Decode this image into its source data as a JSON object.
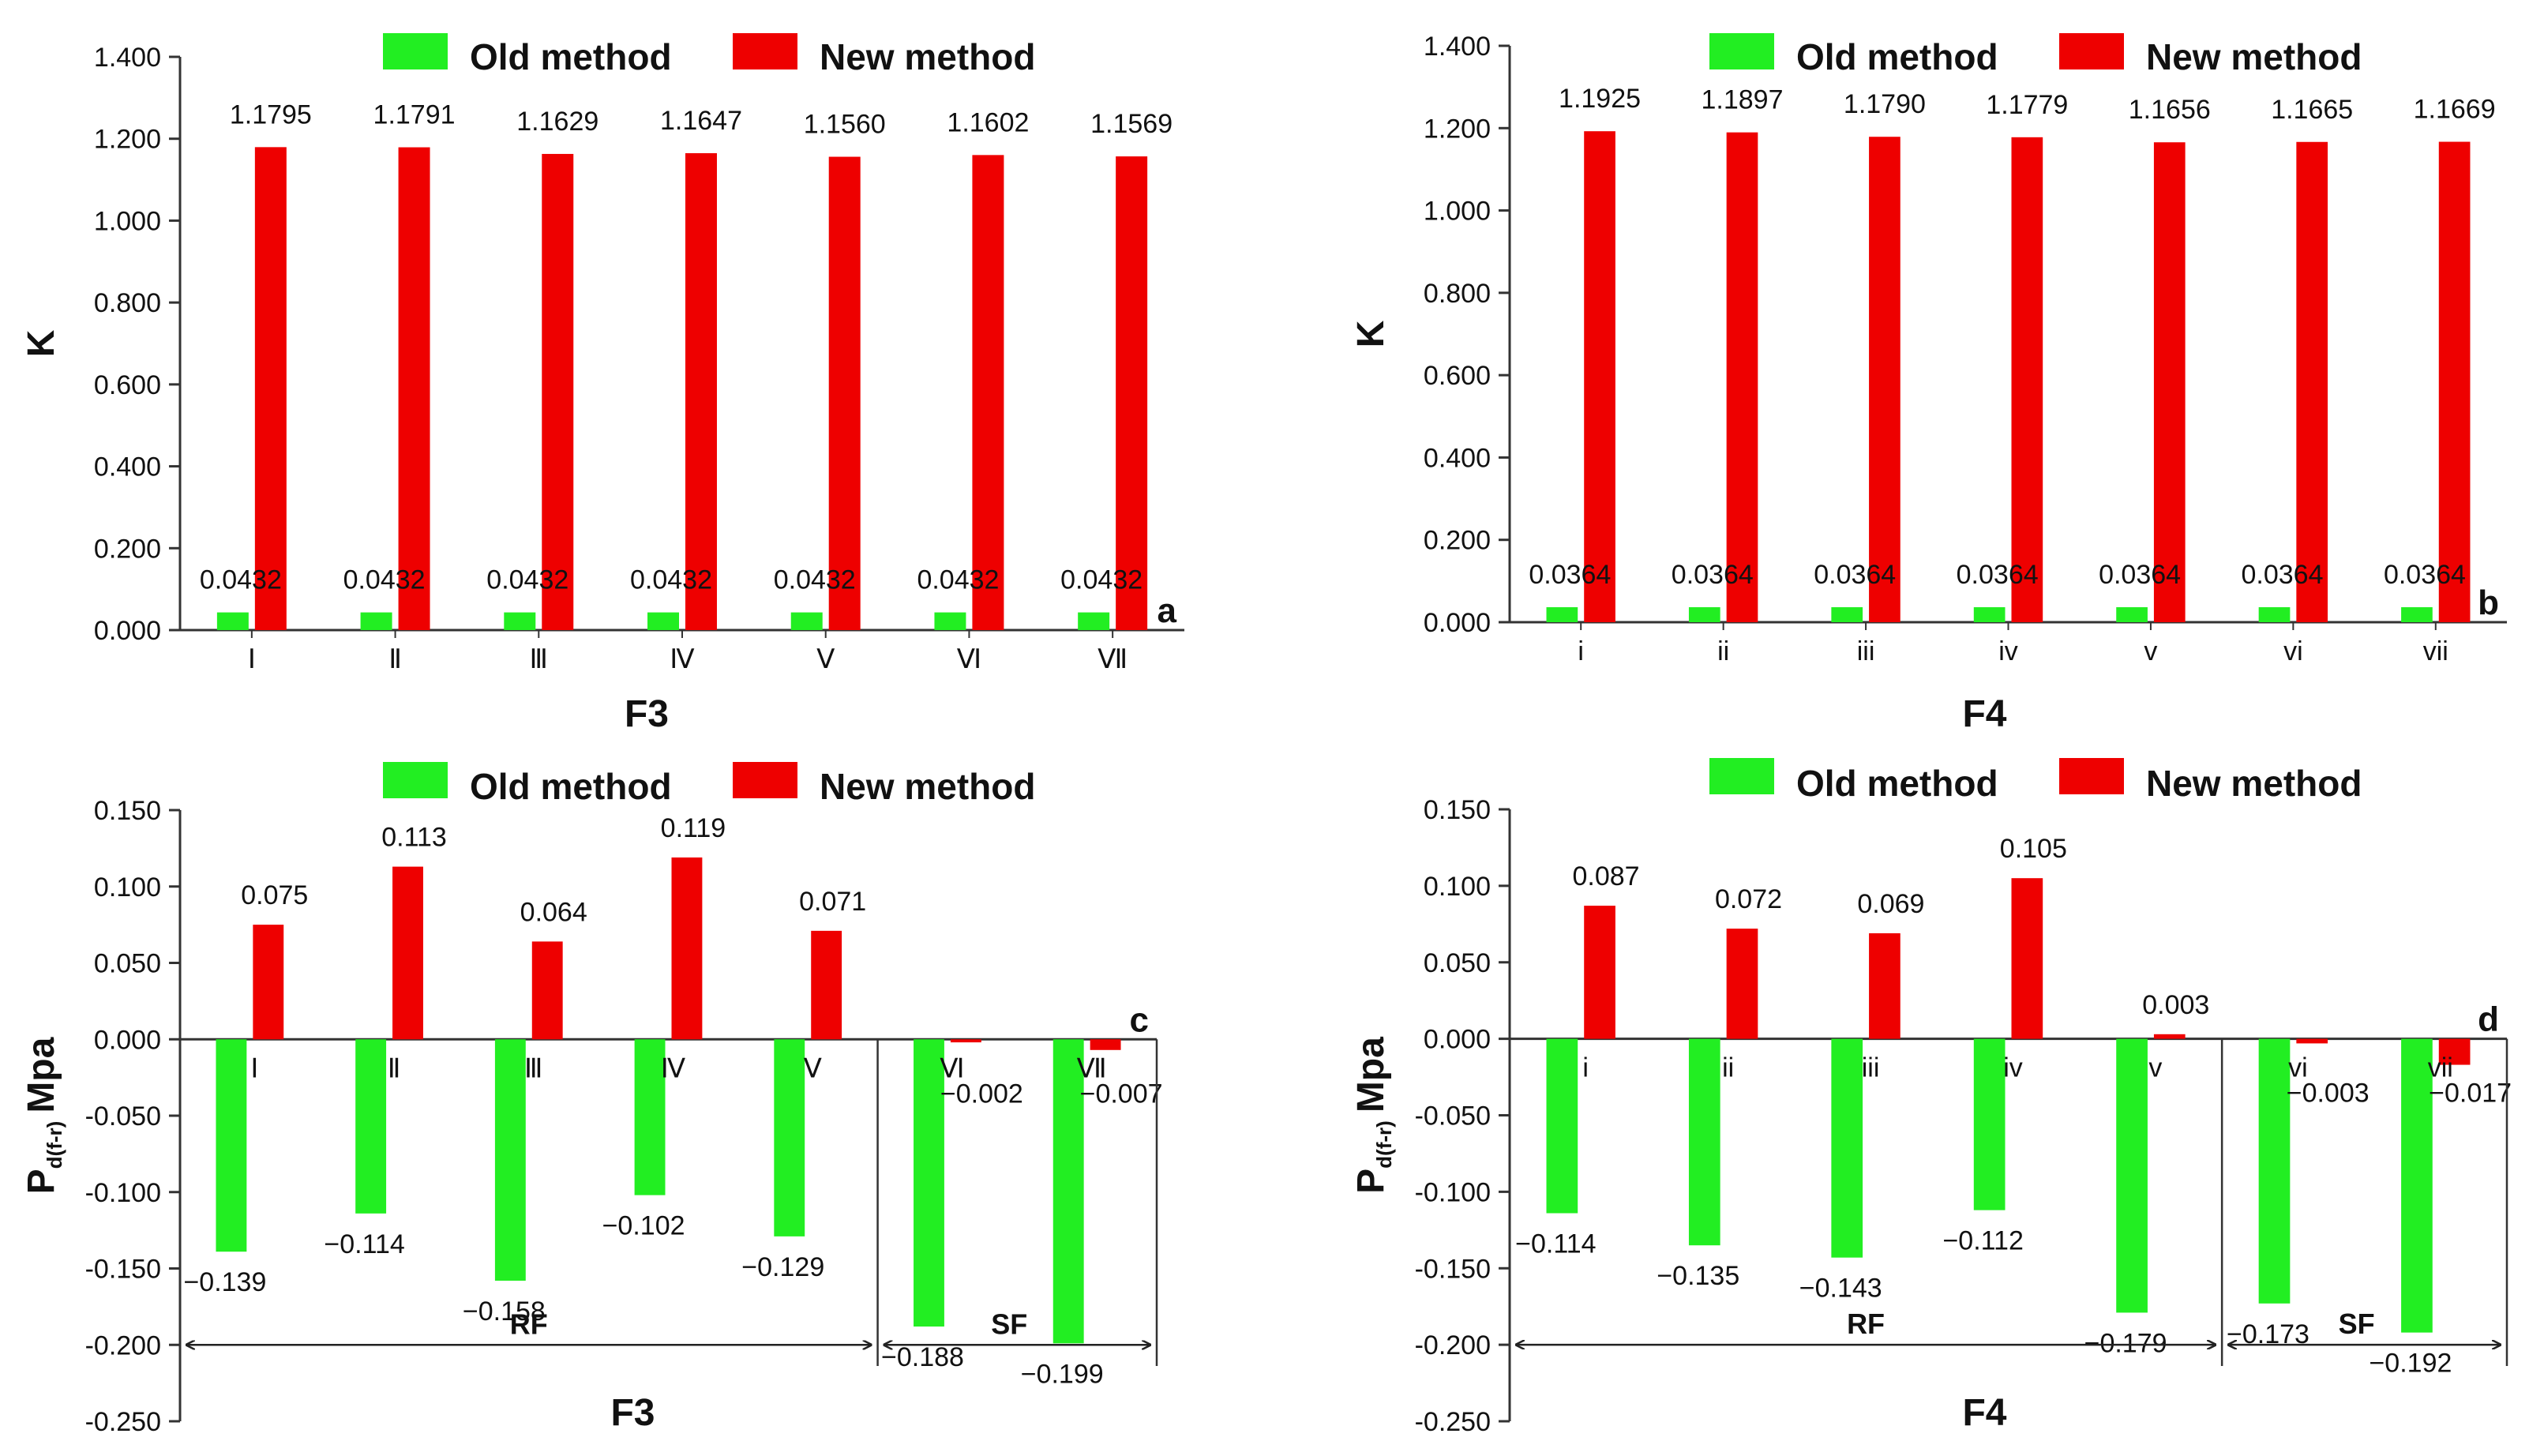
{
  "legend": {
    "old": "Old method",
    "new": "New method"
  },
  "colors": {
    "old": "#22ee22",
    "new": "#ee0000",
    "axis": "#333333"
  },
  "chart_data": [
    {
      "id": "a",
      "type": "bar",
      "panel_letter": "a",
      "xlabel": "F3",
      "ylabel": "K",
      "categories": [
        "Ⅰ",
        "Ⅱ",
        "Ⅲ",
        "Ⅳ",
        "Ⅴ",
        "Ⅵ",
        "Ⅶ"
      ],
      "ylim": [
        0,
        1.4
      ],
      "yticks": [
        "0.000",
        "0.200",
        "0.400",
        "0.600",
        "0.800",
        "1.000",
        "1.200",
        "1.400"
      ],
      "series": [
        {
          "name": "Old method",
          "values": [
            0.0432,
            0.0432,
            0.0432,
            0.0432,
            0.0432,
            0.0432,
            0.0432
          ],
          "labels": [
            "0.0432",
            "0.0432",
            "0.0432",
            "0.0432",
            "0.0432",
            "0.0432",
            "0.0432"
          ]
        },
        {
          "name": "New method",
          "values": [
            1.1795,
            1.1791,
            1.1629,
            1.1647,
            1.156,
            1.1602,
            1.1569
          ],
          "labels": [
            "1.1795",
            "1.1791",
            "1.1629",
            "1.1647",
            "1.1560",
            "1.1602",
            "1.1569"
          ]
        }
      ]
    },
    {
      "id": "b",
      "type": "bar",
      "panel_letter": "b",
      "xlabel": "F4",
      "ylabel": "K",
      "categories": [
        "i",
        "ii",
        "iii",
        "iv",
        "v",
        "vi",
        "vii"
      ],
      "ylim": [
        0,
        1.4
      ],
      "yticks": [
        "0.000",
        "0.200",
        "0.400",
        "0.600",
        "0.800",
        "1.000",
        "1.200",
        "1.400"
      ],
      "series": [
        {
          "name": "Old method",
          "values": [
            0.0364,
            0.0364,
            0.0364,
            0.0364,
            0.0364,
            0.0364,
            0.0364
          ],
          "labels": [
            "0.0364",
            "0.0364",
            "0.0364",
            "0.0364",
            "0.0364",
            "0.0364",
            "0.0364"
          ]
        },
        {
          "name": "New method",
          "values": [
            1.1925,
            1.1897,
            1.179,
            1.1779,
            1.1656,
            1.1665,
            1.1669
          ],
          "labels": [
            "1.1925",
            "1.1897",
            "1.1790",
            "1.1779",
            "1.1656",
            "1.1665",
            "1.1669"
          ]
        }
      ]
    },
    {
      "id": "c",
      "type": "bar",
      "panel_letter": "c",
      "xlabel": "F3",
      "ylabel": "P",
      "ylabel_sub": "d(f-r)",
      "ylabel_unit": "Mpa",
      "categories": [
        "Ⅰ",
        "Ⅱ",
        "Ⅲ",
        "Ⅳ",
        "Ⅴ",
        "Ⅵ",
        "Ⅶ"
      ],
      "ylim": [
        -0.25,
        0.15
      ],
      "yticks": [
        "-0.250",
        "-0.200",
        "-0.150",
        "-0.100",
        "-0.050",
        "0.000",
        "0.050",
        "0.100",
        "0.150"
      ],
      "groups": [
        {
          "label": "RF",
          "from": 0,
          "to": 4
        },
        {
          "label": "SF",
          "from": 5,
          "to": 6
        }
      ],
      "series": [
        {
          "name": "Old method",
          "values": [
            -0.139,
            -0.114,
            -0.158,
            -0.102,
            -0.129,
            -0.188,
            -0.199
          ],
          "labels": [
            "−0.139",
            "−0.114",
            "−0.158",
            "−0.102",
            "−0.129",
            "−0.188",
            "−0.199"
          ]
        },
        {
          "name": "New method",
          "values": [
            0.075,
            0.113,
            0.064,
            0.119,
            0.071,
            -0.002,
            -0.007
          ],
          "labels": [
            "0.075",
            "0.113",
            "0.064",
            "0.119",
            "0.071",
            "−0.002",
            "−0.007"
          ]
        }
      ]
    },
    {
      "id": "d",
      "type": "bar",
      "panel_letter": "d",
      "xlabel": "F4",
      "ylabel": "P",
      "ylabel_sub": "d(f-r)",
      "ylabel_unit": "Mpa",
      "categories": [
        "i",
        "ii",
        "iii",
        "iv",
        "v",
        "vi",
        "vii"
      ],
      "ylim": [
        -0.25,
        0.15
      ],
      "yticks": [
        "-0.250",
        "-0.200",
        "-0.150",
        "-0.100",
        "-0.050",
        "0.000",
        "0.050",
        "0.100",
        "0.150"
      ],
      "groups": [
        {
          "label": "RF",
          "from": 0,
          "to": 4
        },
        {
          "label": "SF",
          "from": 5,
          "to": 6
        }
      ],
      "series": [
        {
          "name": "Old method",
          "values": [
            -0.114,
            -0.135,
            -0.143,
            -0.112,
            -0.179,
            -0.173,
            -0.192
          ],
          "labels": [
            "−0.114",
            "−0.135",
            "−0.143",
            "−0.112",
            "−0.179",
            "−0.173",
            "−0.192"
          ]
        },
        {
          "name": "New method",
          "values": [
            0.087,
            0.072,
            0.069,
            0.105,
            0.003,
            -0.003,
            -0.017
          ],
          "labels": [
            "0.087",
            "0.072",
            "0.069",
            "0.105",
            "0.003",
            "−0.003",
            "−0.017"
          ]
        }
      ]
    }
  ]
}
